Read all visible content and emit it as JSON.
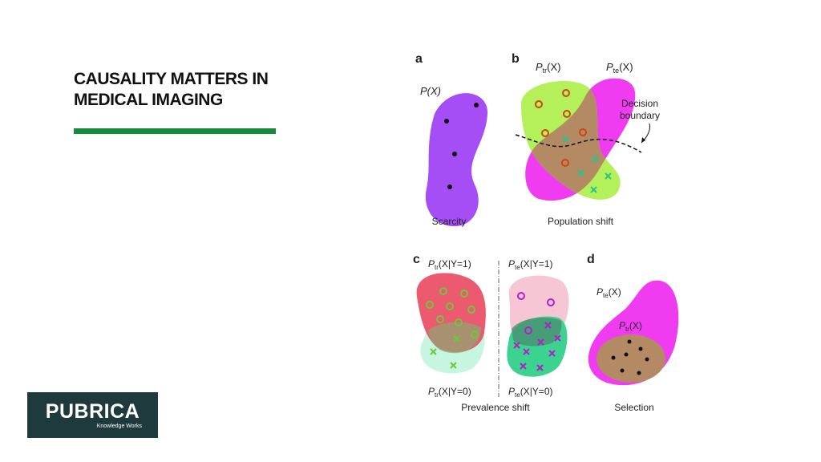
{
  "slide": {
    "title": "CAUSALITY MATTERS IN MEDICAL IMAGING"
  },
  "logo": {
    "name": "PUBRICA",
    "tagline": "Knowledge Works"
  },
  "figure": {
    "panel_a": {
      "letter": "a",
      "dist_label": "P(X)",
      "caption": "Scarcity"
    },
    "panel_b": {
      "letter": "b",
      "train_p": "P",
      "train_sub": "tr",
      "train_arg": "(X)",
      "test_p": "P",
      "test_sub": "te",
      "test_arg": "(X)",
      "boundary_line1": "Decision",
      "boundary_line2": "boundary",
      "caption": "Population shift"
    },
    "panel_c": {
      "letter": "c",
      "tr_pos_p": "P",
      "tr_pos_sub": "tr",
      "tr_pos_arg": "(X|Y=1)",
      "tr_neg_p": "P",
      "tr_neg_sub": "tr",
      "tr_neg_arg": "(X|Y=0)",
      "te_pos_p": "P",
      "te_pos_sub": "te",
      "te_pos_arg": "(X|Y=1)",
      "te_neg_p": "P",
      "te_neg_sub": "te",
      "te_neg_arg": "(X|Y=0)",
      "caption": "Prevalence shift"
    },
    "panel_d": {
      "letter": "d",
      "outer_p": "P",
      "outer_sub": "te",
      "outer_arg": "(X)",
      "inner_p": "P",
      "inner_sub": "tr",
      "inner_arg": "(X)",
      "caption": "Selection"
    },
    "colors": {
      "purple": "#a64ef5",
      "magenta": "#f03cf0",
      "lime": "#b4f05a",
      "overlap_brown": "#b38a64",
      "red": "#eb5a6e",
      "mint": "#c6f5e0",
      "pink": "#f7c6d4",
      "green": "#3cd290",
      "marker_orange": "#cc4411",
      "marker_teal": "#27c48a",
      "marker_green": "#6cc83c",
      "marker_magenta": "#b020c8"
    }
  }
}
